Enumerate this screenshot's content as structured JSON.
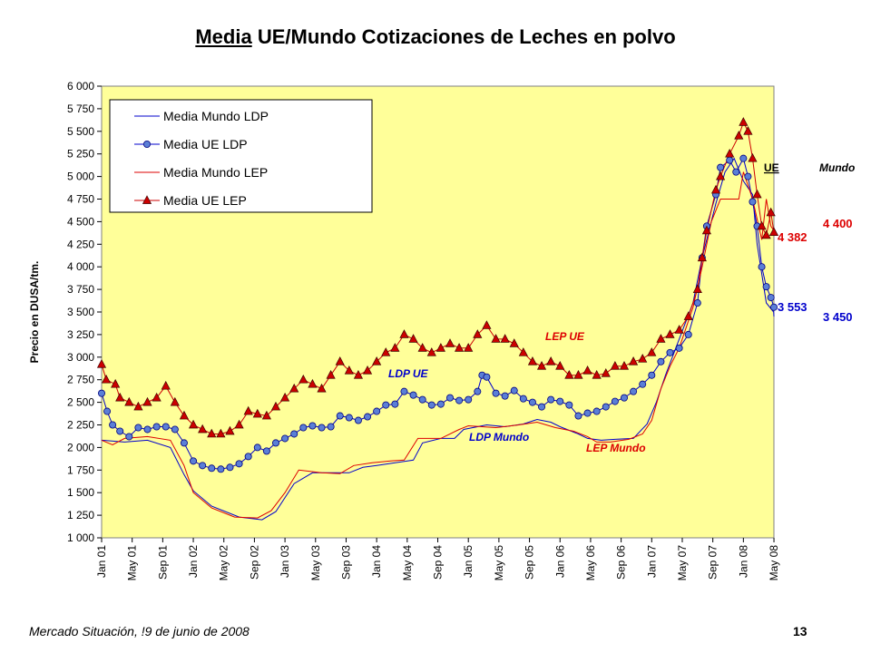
{
  "chart_data": {
    "type": "line",
    "title_underlined": "Media",
    "title_rest": "UE/Mundo Cotizaciones de Leches en polvo",
    "ylabel": "Precio en DUSA/tm.",
    "ylim": [
      1000,
      6000
    ],
    "yticks": [
      1000,
      1250,
      1500,
      1750,
      2000,
      2250,
      2500,
      2750,
      3000,
      3250,
      3500,
      3750,
      4000,
      4250,
      4500,
      4750,
      5000,
      5250,
      5500,
      5750,
      6000
    ],
    "ytick_labels": [
      "1 000",
      "1 250",
      "1 500",
      "1 750",
      "2 000",
      "2 250",
      "2 500",
      "2 750",
      "3 000",
      "3 250",
      "3 500",
      "3 750",
      "4 000",
      "4 250",
      "4 500",
      "4 750",
      "5 000",
      "5 250",
      "5 500",
      "5 750",
      "6 000"
    ],
    "xlim": [
      2001.0,
      2008.333
    ],
    "xtick_labels": [
      "Jan 01",
      "May 01",
      "Sep 01",
      "Jan 02",
      "May 02",
      "Sep 02",
      "Jan 03",
      "May 03",
      "Sep 03",
      "Jan 04",
      "May 04",
      "Sep 04",
      "Jan 05",
      "May 05",
      "Sep 05",
      "Jan 06",
      "May 06",
      "Sep 06",
      "Jan 07",
      "May 07",
      "Sep 07",
      "Jan 08",
      "May 08"
    ],
    "grid": false,
    "plot_background": "#ffff99",
    "legend_position": "top-left",
    "series": [
      {
        "name": "Media Mundo LDP",
        "color": "#0000cc",
        "marker": "none",
        "points": [
          [
            2001.0,
            2080
          ],
          [
            2001.25,
            2060
          ],
          [
            2001.5,
            2080
          ],
          [
            2001.75,
            2000
          ],
          [
            2001.9,
            1700
          ],
          [
            2002.0,
            1520
          ],
          [
            2002.2,
            1350
          ],
          [
            2002.5,
            1230
          ],
          [
            2002.75,
            1200
          ],
          [
            2002.9,
            1290
          ],
          [
            2003.1,
            1600
          ],
          [
            2003.3,
            1720
          ],
          [
            2003.5,
            1720
          ],
          [
            2003.7,
            1720
          ],
          [
            2003.85,
            1780
          ],
          [
            2004.0,
            1800
          ],
          [
            2004.2,
            1830
          ],
          [
            2004.4,
            1860
          ],
          [
            2004.5,
            2050
          ],
          [
            2004.7,
            2100
          ],
          [
            2004.85,
            2100
          ],
          [
            2004.95,
            2200
          ],
          [
            2005.2,
            2250
          ],
          [
            2005.4,
            2230
          ],
          [
            2005.6,
            2260
          ],
          [
            2005.75,
            2310
          ],
          [
            2005.9,
            2280
          ],
          [
            2006.0,
            2230
          ],
          [
            2006.2,
            2150
          ],
          [
            2006.3,
            2100
          ],
          [
            2006.45,
            2080
          ],
          [
            2006.6,
            2090
          ],
          [
            2006.8,
            2100
          ],
          [
            2006.95,
            2260
          ],
          [
            2007.05,
            2500
          ],
          [
            2007.15,
            2800
          ],
          [
            2007.3,
            3200
          ],
          [
            2007.45,
            3600
          ],
          [
            2007.55,
            4100
          ],
          [
            2007.7,
            4700
          ],
          [
            2007.8,
            5050
          ],
          [
            2007.9,
            5200
          ],
          [
            2008.0,
            4950
          ],
          [
            2008.1,
            4800
          ],
          [
            2008.15,
            4250
          ],
          [
            2008.25,
            3600
          ],
          [
            2008.33,
            3500
          ],
          [
            2008.333,
            3450
          ]
        ]
      },
      {
        "name": "Media UE LDP",
        "color": "#0000cc",
        "marker": "circle",
        "marker_fill": "#5b7fd6",
        "points": [
          [
            2001.0,
            2600
          ],
          [
            2001.06,
            2400
          ],
          [
            2001.12,
            2250
          ],
          [
            2001.2,
            2180
          ],
          [
            2001.3,
            2120
          ],
          [
            2001.4,
            2220
          ],
          [
            2001.5,
            2200
          ],
          [
            2001.6,
            2230
          ],
          [
            2001.7,
            2230
          ],
          [
            2001.8,
            2200
          ],
          [
            2001.9,
            2050
          ],
          [
            2002.0,
            1850
          ],
          [
            2002.1,
            1800
          ],
          [
            2002.2,
            1770
          ],
          [
            2002.3,
            1760
          ],
          [
            2002.4,
            1780
          ],
          [
            2002.5,
            1820
          ],
          [
            2002.6,
            1900
          ],
          [
            2002.7,
            2000
          ],
          [
            2002.8,
            1960
          ],
          [
            2002.9,
            2050
          ],
          [
            2003.0,
            2100
          ],
          [
            2003.1,
            2150
          ],
          [
            2003.2,
            2220
          ],
          [
            2003.3,
            2240
          ],
          [
            2003.4,
            2220
          ],
          [
            2003.5,
            2230
          ],
          [
            2003.6,
            2350
          ],
          [
            2003.7,
            2330
          ],
          [
            2003.8,
            2300
          ],
          [
            2003.9,
            2340
          ],
          [
            2004.0,
            2400
          ],
          [
            2004.1,
            2470
          ],
          [
            2004.2,
            2480
          ],
          [
            2004.3,
            2620
          ],
          [
            2004.4,
            2580
          ],
          [
            2004.5,
            2530
          ],
          [
            2004.6,
            2470
          ],
          [
            2004.7,
            2480
          ],
          [
            2004.8,
            2550
          ],
          [
            2004.9,
            2520
          ],
          [
            2005.0,
            2530
          ],
          [
            2005.1,
            2620
          ],
          [
            2005.15,
            2800
          ],
          [
            2005.2,
            2780
          ],
          [
            2005.3,
            2600
          ],
          [
            2005.4,
            2570
          ],
          [
            2005.5,
            2630
          ],
          [
            2005.6,
            2540
          ],
          [
            2005.7,
            2500
          ],
          [
            2005.8,
            2450
          ],
          [
            2005.9,
            2530
          ],
          [
            2006.0,
            2510
          ],
          [
            2006.1,
            2470
          ],
          [
            2006.2,
            2350
          ],
          [
            2006.3,
            2380
          ],
          [
            2006.4,
            2400
          ],
          [
            2006.5,
            2450
          ],
          [
            2006.6,
            2510
          ],
          [
            2006.7,
            2550
          ],
          [
            2006.8,
            2620
          ],
          [
            2006.9,
            2700
          ],
          [
            2007.0,
            2800
          ],
          [
            2007.1,
            2950
          ],
          [
            2007.2,
            3050
          ],
          [
            2007.3,
            3100
          ],
          [
            2007.4,
            3250
          ],
          [
            2007.5,
            3600
          ],
          [
            2007.55,
            4100
          ],
          [
            2007.6,
            4450
          ],
          [
            2007.7,
            4800
          ],
          [
            2007.75,
            5100
          ],
          [
            2007.85,
            5180
          ],
          [
            2007.92,
            5050
          ],
          [
            2008.0,
            5200
          ],
          [
            2008.05,
            5000
          ],
          [
            2008.1,
            4720
          ],
          [
            2008.15,
            4450
          ],
          [
            2008.2,
            4000
          ],
          [
            2008.25,
            3780
          ],
          [
            2008.3,
            3660
          ],
          [
            2008.333,
            3553
          ]
        ]
      },
      {
        "name": "Media Mundo LEP",
        "color": "#dd0000",
        "marker": "none",
        "points": [
          [
            2001.0,
            2080
          ],
          [
            2001.12,
            2030
          ],
          [
            2001.25,
            2100
          ],
          [
            2001.5,
            2120
          ],
          [
            2001.75,
            2080
          ],
          [
            2001.9,
            1800
          ],
          [
            2002.0,
            1500
          ],
          [
            2002.2,
            1330
          ],
          [
            2002.45,
            1230
          ],
          [
            2002.7,
            1220
          ],
          [
            2002.85,
            1300
          ],
          [
            2003.0,
            1500
          ],
          [
            2003.15,
            1750
          ],
          [
            2003.4,
            1720
          ],
          [
            2003.6,
            1710
          ],
          [
            2003.75,
            1800
          ],
          [
            2003.95,
            1830
          ],
          [
            2004.15,
            1850
          ],
          [
            2004.3,
            1860
          ],
          [
            2004.45,
            2100
          ],
          [
            2004.7,
            2100
          ],
          [
            2004.9,
            2200
          ],
          [
            2005.0,
            2240
          ],
          [
            2005.3,
            2220
          ],
          [
            2005.55,
            2250
          ],
          [
            2005.75,
            2280
          ],
          [
            2005.95,
            2220
          ],
          [
            2006.15,
            2180
          ],
          [
            2006.3,
            2120
          ],
          [
            2006.4,
            2060
          ],
          [
            2006.55,
            2060
          ],
          [
            2006.75,
            2090
          ],
          [
            2006.9,
            2150
          ],
          [
            2007.0,
            2300
          ],
          [
            2007.1,
            2650
          ],
          [
            2007.2,
            2900
          ],
          [
            2007.3,
            3100
          ],
          [
            2007.45,
            3550
          ],
          [
            2007.55,
            4000
          ],
          [
            2007.65,
            4500
          ],
          [
            2007.75,
            4750
          ],
          [
            2007.85,
            4750
          ],
          [
            2007.95,
            4750
          ],
          [
            2008.0,
            5050
          ],
          [
            2008.1,
            4750
          ],
          [
            2008.2,
            4300
          ],
          [
            2008.25,
            4750
          ],
          [
            2008.3,
            4450
          ],
          [
            2008.333,
            4400
          ]
        ]
      },
      {
        "name": "Media UE LEP",
        "color": "#cc0000",
        "marker": "triangle",
        "marker_fill": "#cc0000",
        "points": [
          [
            2001.0,
            2920
          ],
          [
            2001.05,
            2750
          ],
          [
            2001.15,
            2700
          ],
          [
            2001.2,
            2550
          ],
          [
            2001.3,
            2500
          ],
          [
            2001.4,
            2450
          ],
          [
            2001.5,
            2500
          ],
          [
            2001.6,
            2550
          ],
          [
            2001.7,
            2680
          ],
          [
            2001.8,
            2500
          ],
          [
            2001.9,
            2350
          ],
          [
            2002.0,
            2250
          ],
          [
            2002.1,
            2200
          ],
          [
            2002.2,
            2150
          ],
          [
            2002.3,
            2150
          ],
          [
            2002.4,
            2180
          ],
          [
            2002.5,
            2250
          ],
          [
            2002.6,
            2400
          ],
          [
            2002.7,
            2370
          ],
          [
            2002.8,
            2350
          ],
          [
            2002.9,
            2450
          ],
          [
            2003.0,
            2550
          ],
          [
            2003.1,
            2650
          ],
          [
            2003.2,
            2750
          ],
          [
            2003.3,
            2700
          ],
          [
            2003.4,
            2650
          ],
          [
            2003.5,
            2800
          ],
          [
            2003.6,
            2950
          ],
          [
            2003.7,
            2850
          ],
          [
            2003.8,
            2800
          ],
          [
            2003.9,
            2850
          ],
          [
            2004.0,
            2950
          ],
          [
            2004.1,
            3050
          ],
          [
            2004.2,
            3100
          ],
          [
            2004.3,
            3250
          ],
          [
            2004.4,
            3200
          ],
          [
            2004.5,
            3100
          ],
          [
            2004.6,
            3050
          ],
          [
            2004.7,
            3100
          ],
          [
            2004.8,
            3150
          ],
          [
            2004.9,
            3100
          ],
          [
            2005.0,
            3100
          ],
          [
            2005.1,
            3250
          ],
          [
            2005.2,
            3350
          ],
          [
            2005.3,
            3200
          ],
          [
            2005.4,
            3200
          ],
          [
            2005.5,
            3150
          ],
          [
            2005.6,
            3050
          ],
          [
            2005.7,
            2950
          ],
          [
            2005.8,
            2900
          ],
          [
            2005.9,
            2950
          ],
          [
            2006.0,
            2900
          ],
          [
            2006.1,
            2800
          ],
          [
            2006.2,
            2800
          ],
          [
            2006.3,
            2850
          ],
          [
            2006.4,
            2800
          ],
          [
            2006.5,
            2820
          ],
          [
            2006.6,
            2900
          ],
          [
            2006.7,
            2900
          ],
          [
            2006.8,
            2950
          ],
          [
            2006.9,
            2980
          ],
          [
            2007.0,
            3050
          ],
          [
            2007.1,
            3200
          ],
          [
            2007.2,
            3250
          ],
          [
            2007.3,
            3300
          ],
          [
            2007.4,
            3450
          ],
          [
            2007.5,
            3750
          ],
          [
            2007.55,
            4100
          ],
          [
            2007.6,
            4400
          ],
          [
            2007.7,
            4850
          ],
          [
            2007.75,
            5000
          ],
          [
            2007.85,
            5250
          ],
          [
            2007.95,
            5450
          ],
          [
            2008.0,
            5600
          ],
          [
            2008.05,
            5500
          ],
          [
            2008.1,
            5200
          ],
          [
            2008.15,
            4800
          ],
          [
            2008.2,
            4450
          ],
          [
            2008.25,
            4350
          ],
          [
            2008.3,
            4600
          ],
          [
            2008.333,
            4382
          ]
        ]
      }
    ],
    "legend": [
      "Media Mundo LDP",
      "Media UE LDP",
      "Media Mundo LEP",
      "Media UE LEP"
    ],
    "annotations": {
      "lep_ue": "LEP UE",
      "ldp_ue": "LDP UE",
      "ldp_mundo": "LDP Mundo",
      "lep_mundo": "LEP Mundo",
      "col_ue": "UE",
      "col_mundo": "Mundo",
      "ue_lep_value": "4 382",
      "mundo_lep_value": "4 400",
      "ue_ldp_value": "3 553",
      "mundo_ldp_value": "3 450"
    }
  },
  "footer": {
    "source": "Mercado Situación, !9 de junio de 2008",
    "page": "13"
  }
}
